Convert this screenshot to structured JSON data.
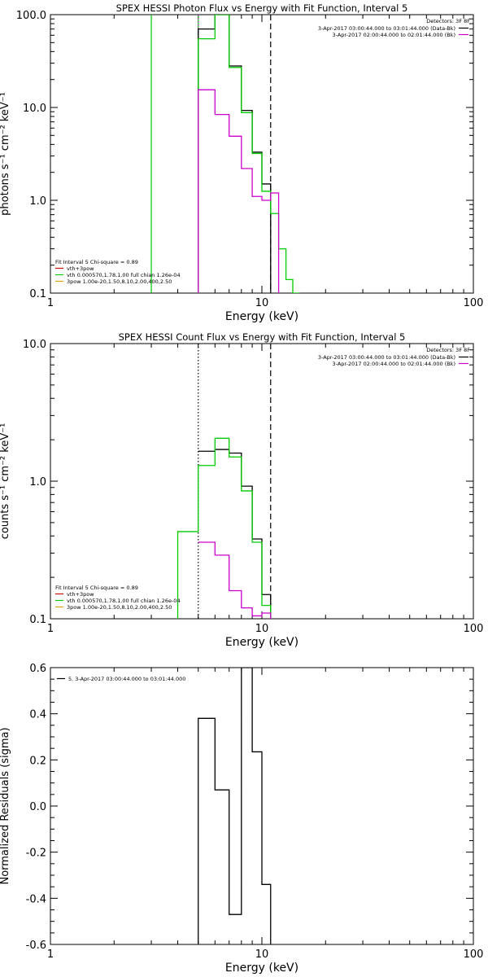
{
  "chart_data": [
    {
      "type": "step",
      "title": "SPEX HESSI Photon Flux vs Energy with Fit Function, Interval 5",
      "xlabel": "Energy (keV)",
      "ylabel": "photons s⁻¹ cm⁻² keV⁻¹",
      "xscale": "log",
      "yscale": "log",
      "xlim": [
        1,
        100
      ],
      "ylim": [
        0.1,
        100
      ],
      "xticks": [
        {
          "v": 1,
          "label": "1"
        },
        {
          "v": 10,
          "label": "10"
        },
        {
          "v": 100,
          "label": "100"
        }
      ],
      "yticks": [
        {
          "v": 0.1,
          "label": "0.1"
        },
        {
          "v": 1,
          "label": "1.0"
        },
        {
          "v": 10,
          "label": "10.0"
        },
        {
          "v": 100,
          "label": "100.0"
        }
      ],
      "vlines": [
        {
          "x": 3.0,
          "color": "#00cc00",
          "style": "solid"
        },
        {
          "x": 5.0,
          "color": "#00cc00",
          "style": "solid"
        },
        {
          "x": 5.0,
          "color": "#cc00cc",
          "style": "dotted"
        },
        {
          "x": 11.0,
          "color": "#000000",
          "style": "dashed"
        }
      ],
      "edges": [
        5.0,
        6.0,
        7.0,
        8.0,
        9.0,
        10.0,
        11.0,
        12.0,
        13.0,
        14.0,
        15.0
      ],
      "series": [
        {
          "name": "data",
          "color": "#000000",
          "values": [
            70,
            100,
            28,
            9.3,
            3.3,
            1.5
          ]
        },
        {
          "name": "vth+3pow",
          "color": "#00cc00",
          "values": [
            55,
            100,
            27,
            8.8,
            3.2,
            1.25,
            0.72,
            0.3,
            0.14,
            0.1
          ]
        },
        {
          "name": "vth",
          "color": "#cc00cc",
          "values": [
            15.5,
            8.4,
            4.9,
            2.2,
            1.1,
            1.0,
            1.2
          ]
        }
      ],
      "legend_top_right": {
        "title": "Detectors: 3F 8F",
        "entries": [
          {
            "text": "3-Apr-2017 03:00:44.000 to 03:01:44.000 (Data-Bk)",
            "color": "#000000"
          },
          {
            "text": "3-Apr-2017 02:00:44.000 to 02:01:44.000 (Bk)",
            "color": "#cc00cc"
          }
        ]
      },
      "legend_bottom_left": {
        "title": "Fit Interval 5   Chi-square = 0.89",
        "entries": [
          {
            "text": "vth+3pow",
            "color": "#cc0000"
          },
          {
            "text": "vth 0.000570,1.78,1.00   full chian 1.26e-04",
            "color": "#00cc00"
          },
          {
            "text": "3pow 1.00e-20,1.50,8.10,2.00,400,2.50",
            "color": "#e0a000"
          }
        ]
      }
    },
    {
      "type": "step",
      "title": "SPEX HESSI Count Flux vs Energy with Fit Function, Interval 5",
      "xlabel": "Energy (keV)",
      "ylabel": "counts s⁻¹ cm⁻² keV⁻¹",
      "xscale": "log",
      "yscale": "log",
      "xlim": [
        1,
        100
      ],
      "ylim": [
        0.1,
        10
      ],
      "xticks": [
        {
          "v": 1,
          "label": "1"
        },
        {
          "v": 10,
          "label": "10"
        },
        {
          "v": 100,
          "label": "100"
        }
      ],
      "yticks": [
        {
          "v": 0.1,
          "label": "0.1"
        },
        {
          "v": 1,
          "label": "1.0"
        },
        {
          "v": 10,
          "label": "10.0"
        }
      ],
      "vlines": [
        {
          "x": 5.0,
          "color": "#000000",
          "style": "dotted"
        },
        {
          "x": 11.0,
          "color": "#000000",
          "style": "dashed"
        }
      ],
      "edges": [
        4.0,
        5.0,
        6.0,
        7.0,
        8.0,
        9.0,
        10.0,
        11.0
      ],
      "series": [
        {
          "name": "data",
          "color": "#000000",
          "values": [
            null,
            1.65,
            1.7,
            1.6,
            0.92,
            0.38,
            0.15
          ]
        },
        {
          "name": "vth+3pow",
          "color": "#00cc00",
          "values": [
            0.43,
            1.3,
            2.05,
            1.5,
            0.85,
            0.36,
            0.125
          ]
        },
        {
          "name": "vth",
          "color": "#cc00cc",
          "values": [
            null,
            0.36,
            0.29,
            0.16,
            0.12,
            0.105,
            0.11
          ]
        }
      ],
      "legend_top_right": {
        "title": "Detectors: 3F 8F",
        "entries": [
          {
            "text": "3-Apr-2017 03:00:44.000 to 03:01:44.000 (Data-Bk)",
            "color": "#000000"
          },
          {
            "text": "3-Apr-2017 02:00:44.000 to 02:01:44.000 (Bk)",
            "color": "#cc00cc"
          }
        ]
      },
      "legend_bottom_left": {
        "title": "Fit Interval 5   Chi-square = 0.89",
        "entries": [
          {
            "text": "vth+3pow",
            "color": "#cc0000"
          },
          {
            "text": "vth 0.000570,1.78,1.00   full chian 1.26e-04",
            "color": "#00cc00"
          },
          {
            "text": "3pow 1.00e-20,1.50,8.10,2.00,400,2.50",
            "color": "#e0a000"
          }
        ]
      }
    },
    {
      "type": "step",
      "title": "",
      "xlabel": "Energy (keV)",
      "ylabel": "Normalized Residuals (sigma)",
      "xscale": "log",
      "yscale": "linear",
      "xlim": [
        1,
        100
      ],
      "ylim": [
        -0.6,
        0.6
      ],
      "xticks": [
        {
          "v": 1,
          "label": "1"
        },
        {
          "v": 10,
          "label": "10"
        },
        {
          "v": 100,
          "label": "100"
        }
      ],
      "yticks": [
        {
          "v": -0.6,
          "label": "-0.6"
        },
        {
          "v": -0.4,
          "label": "-0.4"
        },
        {
          "v": -0.2,
          "label": "-0.2"
        },
        {
          "v": 0.0,
          "label": "0.0"
        },
        {
          "v": 0.2,
          "label": "0.2"
        },
        {
          "v": 0.4,
          "label": "0.4"
        },
        {
          "v": 0.6,
          "label": "0.6"
        }
      ],
      "edges": [
        5.0,
        6.0,
        7.0,
        8.0,
        9.0,
        10.0,
        11.0
      ],
      "series": [
        {
          "name": "residuals",
          "color": "#000000",
          "values": [
            0.38,
            0.07,
            -0.47,
            0.6,
            0.235,
            -0.34
          ]
        }
      ],
      "legend_top_left": {
        "entries": [
          {
            "text": "5.  3-Apr-2017 03:00:44.000 to 03:01:44.000",
            "color": "#000000"
          }
        ]
      }
    }
  ]
}
